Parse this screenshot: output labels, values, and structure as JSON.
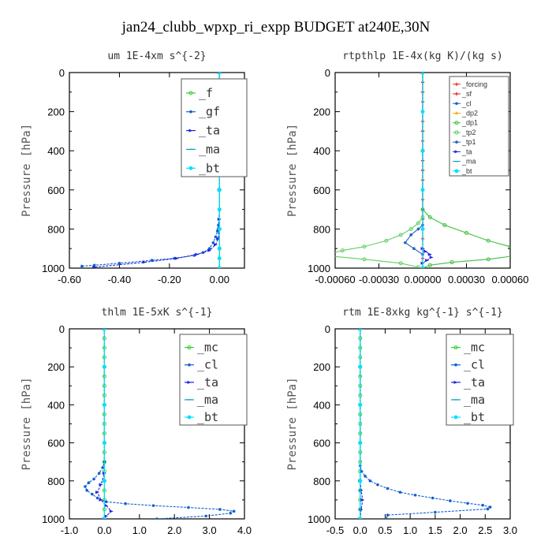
{
  "title": "jan24_clubb_wpxp_ri_expp  BUDGET at240E,30N",
  "colors": {
    "forcing": "#e03020",
    "sf": "#e02020",
    "cl": "#1060d0",
    "dp2": "#f0b000",
    "dp1": "#40c040",
    "tp2": "#60d060",
    "tp1": "#2060c0",
    "ta": "#2020e0",
    "ma": "#00a0c0",
    "bt": "#00e0ff",
    "f": "#30d030",
    "gf": "#1060d0",
    "mc": "#30d030"
  },
  "chart_data": [
    {
      "type": "line",
      "title": "um  1E-4xm s^{-2}",
      "ylabel": "Pressure [hPa]",
      "xlim": [
        -0.6,
        0.1
      ],
      "ylim": [
        1000,
        0
      ],
      "xticks": [
        -0.6,
        -0.4,
        -0.2,
        0.0
      ],
      "xtick_labels": [
        "-0.60",
        "-0.40",
        "-0.20",
        "0.00"
      ],
      "yticks": [
        0,
        200,
        400,
        600,
        800,
        1000
      ],
      "legend_size": "big",
      "series": [
        {
          "name": "_f",
          "color_key": "f",
          "x": [
            0,
            0,
            0,
            0,
            0,
            0,
            0,
            0,
            0,
            0,
            0,
            0
          ],
          "y": [
            0,
            100,
            200,
            300,
            400,
            500,
            600,
            700,
            800,
            900,
            950,
            1000
          ]
        },
        {
          "name": "_gf",
          "color_key": "gf",
          "x": [
            0,
            0,
            0,
            0,
            0,
            -0.002,
            -0.004,
            -0.008,
            -0.015,
            -0.025,
            -0.04,
            -0.065,
            -0.1,
            -0.18,
            -0.27,
            -0.4,
            -0.5,
            -0.55
          ],
          "y": [
            0,
            200,
            400,
            600,
            700,
            750,
            780,
            810,
            840,
            870,
            900,
            920,
            935,
            950,
            960,
            975,
            985,
            990
          ]
        },
        {
          "name": "_ta",
          "color_key": "ta",
          "x": [
            0,
            0,
            0,
            0,
            -0.002,
            -0.005,
            -0.015,
            -0.04,
            -0.09,
            -0.17,
            -0.3,
            -0.5
          ],
          "y": [
            0,
            300,
            600,
            750,
            800,
            850,
            880,
            910,
            930,
            950,
            970,
            995
          ]
        },
        {
          "name": "_ma",
          "color_key": "ma",
          "x": [
            0,
            0,
            0,
            0,
            0,
            0
          ],
          "y": [
            0,
            200,
            400,
            600,
            800,
            1000
          ]
        },
        {
          "name": "_bt",
          "color_key": "bt",
          "x": [
            0,
            0,
            0,
            0,
            0,
            0,
            0,
            0,
            0,
            0,
            0,
            0
          ],
          "y": [
            0,
            100,
            200,
            300,
            400,
            500,
            600,
            700,
            800,
            900,
            950,
            1000
          ]
        }
      ]
    },
    {
      "type": "line",
      "title": "rtpthlp  1E-4x(kg K)/(kg s)",
      "ylabel": "Pressure [hPa]",
      "xlim": [
        -0.0006,
        0.0006
      ],
      "ylim": [
        1000,
        0
      ],
      "xticks": [
        -0.0006,
        -0.0003,
        0.0,
        0.0003,
        0.0006
      ],
      "xtick_labels": [
        "-0.00060",
        "-0.00030",
        "0.00000",
        "0.00030",
        "0.00060"
      ],
      "yticks": [
        0,
        200,
        400,
        600,
        800,
        1000
      ],
      "legend_size": "small",
      "series": [
        {
          "name": "_forcing",
          "color_key": "forcing",
          "x": [
            0,
            0,
            0,
            0,
            0,
            0,
            0,
            0,
            0,
            0,
            0
          ],
          "y": [
            0,
            100,
            200,
            300,
            400,
            500,
            600,
            700,
            800,
            900,
            1000
          ]
        },
        {
          "name": "_sf",
          "color_key": "sf",
          "x": [
            0,
            0,
            0,
            0,
            0,
            0,
            0,
            0,
            0,
            0,
            0,
            0,
            0,
            0,
            0,
            0,
            0,
            0,
            0,
            0,
            0
          ],
          "y": [
            0,
            50,
            100,
            150,
            200,
            250,
            300,
            350,
            400,
            450,
            500,
            550,
            600,
            650,
            700,
            750,
            800,
            850,
            900,
            950,
            1000
          ]
        },
        {
          "name": "_cl",
          "color_key": "cl",
          "x": [
            0,
            0,
            0,
            0,
            0,
            0
          ],
          "y": [
            0,
            200,
            400,
            600,
            800,
            1000
          ]
        },
        {
          "name": "_dp2",
          "color_key": "dp2",
          "x": [
            0,
            0,
            0,
            0,
            0,
            0
          ],
          "y": [
            0,
            200,
            400,
            600,
            800,
            1000
          ]
        },
        {
          "name": "_dp1",
          "color_key": "dp1",
          "x": [
            0,
            0,
            0,
            5e-05,
            0.00015,
            0.0003,
            0.00045,
            0.0006,
            0.0007,
            0.00045,
            0.0002,
            5e-05,
            0
          ],
          "y": [
            0,
            400,
            700,
            740,
            780,
            820,
            860,
            890,
            930,
            955,
            970,
            985,
            1000
          ]
        },
        {
          "name": "_tp2",
          "color_key": "tp2",
          "x": [
            0,
            0,
            0,
            -3e-05,
            -8e-05,
            -0.00015,
            -0.00025,
            -0.0004,
            -0.00055,
            -0.00068,
            -0.0004,
            -0.00015,
            -3e-05
          ],
          "y": [
            0,
            400,
            740,
            770,
            800,
            830,
            860,
            890,
            910,
            935,
            955,
            975,
            995
          ]
        },
        {
          "name": "_tp1",
          "color_key": "tp1",
          "x": [
            0,
            0,
            -3e-05,
            -8e-05,
            -0.00012,
            -6e-05,
            0
          ],
          "y": [
            0,
            780,
            800,
            830,
            870,
            900,
            930
          ]
        },
        {
          "name": "_ta",
          "color_key": "ta",
          "x": [
            0,
            0,
            2e-05,
            5e-05,
            6e-05,
            3e-05,
            0
          ],
          "y": [
            0,
            900,
            915,
            930,
            945,
            960,
            975
          ]
        },
        {
          "name": "_ma",
          "color_key": "ma",
          "x": [
            0,
            0,
            0,
            0,
            0,
            0
          ],
          "y": [
            0,
            200,
            400,
            600,
            800,
            1000
          ]
        },
        {
          "name": "_bt",
          "color_key": "bt",
          "x": [
            0,
            0,
            0,
            0,
            0,
            0
          ],
          "y": [
            0,
            200,
            400,
            600,
            800,
            1000
          ]
        }
      ]
    },
    {
      "type": "line",
      "title": "thlm  1E-5xK s^{-1}",
      "ylabel": "Pressure [hPa]",
      "xlim": [
        -1.0,
        4.0
      ],
      "ylim": [
        1000,
        0
      ],
      "xticks": [
        -1.0,
        0.0,
        1.0,
        2.0,
        3.0,
        4.0
      ],
      "xtick_labels": [
        "-1.0",
        "0.0",
        "1.0",
        "2.0",
        "3.0",
        "4.0"
      ],
      "yticks": [
        0,
        200,
        400,
        600,
        800,
        1000
      ],
      "legend_size": "big",
      "series": [
        {
          "name": "_mc",
          "color_key": "mc",
          "x": [
            0,
            0,
            0,
            0,
            0,
            0,
            0,
            0,
            0,
            0,
            0,
            0,
            0,
            0,
            0,
            0,
            0,
            0,
            0,
            0,
            0
          ],
          "y": [
            0,
            50,
            100,
            150,
            200,
            250,
            300,
            350,
            400,
            450,
            500,
            550,
            600,
            650,
            700,
            750,
            800,
            850,
            900,
            950,
            1000
          ]
        },
        {
          "name": "_cl",
          "color_key": "cl",
          "x": [
            0,
            0,
            -0.05,
            -0.15,
            -0.3,
            -0.45,
            -0.55,
            -0.5,
            -0.35,
            -0.2,
            0.05,
            0.6,
            1.4,
            2.4,
            3.3,
            3.7,
            3.6,
            2.9,
            1.5
          ],
          "y": [
            0,
            700,
            730,
            760,
            790,
            810,
            830,
            850,
            870,
            890,
            910,
            920,
            930,
            940,
            950,
            960,
            970,
            985,
            1000
          ]
        },
        {
          "name": "_ta",
          "color_key": "ta",
          "x": [
            0,
            0,
            -0.1,
            -0.2,
            -0.1,
            0.05,
            0.2,
            0.05,
            0
          ],
          "y": [
            0,
            760,
            820,
            860,
            900,
            930,
            960,
            985,
            1000
          ]
        },
        {
          "name": "_ma",
          "color_key": "ma",
          "x": [
            0,
            0,
            0,
            0,
            0,
            0
          ],
          "y": [
            0,
            200,
            400,
            600,
            800,
            1000
          ]
        },
        {
          "name": "_bt",
          "color_key": "bt",
          "x": [
            0,
            0,
            0,
            0,
            0,
            0
          ],
          "y": [
            0,
            200,
            400,
            600,
            800,
            1000
          ]
        }
      ]
    },
    {
      "type": "line",
      "title": "rtm  1E-8xkg kg^{-1} s^{-1}",
      "ylabel": "Pressure [hPa]",
      "xlim": [
        -0.5,
        3.0
      ],
      "ylim": [
        1000,
        0
      ],
      "xticks": [
        -0.5,
        0.0,
        0.5,
        1.0,
        1.5,
        2.0,
        2.5,
        3.0
      ],
      "xtick_labels": [
        "-0.5",
        "0.0",
        "0.5",
        "1.0",
        "1.5",
        "2.0",
        "2.5",
        "3.0"
      ],
      "yticks": [
        0,
        200,
        400,
        600,
        800,
        1000
      ],
      "legend_size": "big",
      "series": [
        {
          "name": "_mc",
          "color_key": "mc",
          "x": [
            0,
            0,
            0,
            0,
            0,
            0,
            0,
            0,
            0,
            0,
            0,
            0,
            0,
            0,
            0,
            0,
            0,
            0,
            0,
            0,
            0
          ],
          "y": [
            0,
            50,
            100,
            150,
            200,
            250,
            300,
            350,
            400,
            450,
            500,
            550,
            600,
            650,
            700,
            750,
            800,
            850,
            900,
            950,
            1000
          ]
        },
        {
          "name": "_cl",
          "color_key": "cl",
          "x": [
            0,
            0,
            0.03,
            0.1,
            0.2,
            0.35,
            0.55,
            0.8,
            1.1,
            1.45,
            1.8,
            2.15,
            2.45,
            2.6,
            2.55,
            1.5,
            0.55,
            0.52
          ],
          "y": [
            0,
            720,
            750,
            775,
            800,
            820,
            840,
            860,
            875,
            890,
            905,
            918,
            928,
            938,
            948,
            965,
            980,
            1000
          ]
        },
        {
          "name": "_ta",
          "color_key": "ta",
          "x": [
            0,
            0,
            0.02,
            0.05,
            0.02,
            0
          ],
          "y": [
            0,
            800,
            850,
            900,
            950,
            1000
          ]
        },
        {
          "name": "_ma",
          "color_key": "ma",
          "x": [
            0,
            0,
            0,
            0,
            0,
            0
          ],
          "y": [
            0,
            200,
            400,
            600,
            800,
            1000
          ]
        },
        {
          "name": "_bt",
          "color_key": "bt",
          "x": [
            0,
            0,
            0,
            0,
            0,
            0
          ],
          "y": [
            0,
            200,
            400,
            600,
            800,
            1000
          ]
        }
      ]
    }
  ]
}
